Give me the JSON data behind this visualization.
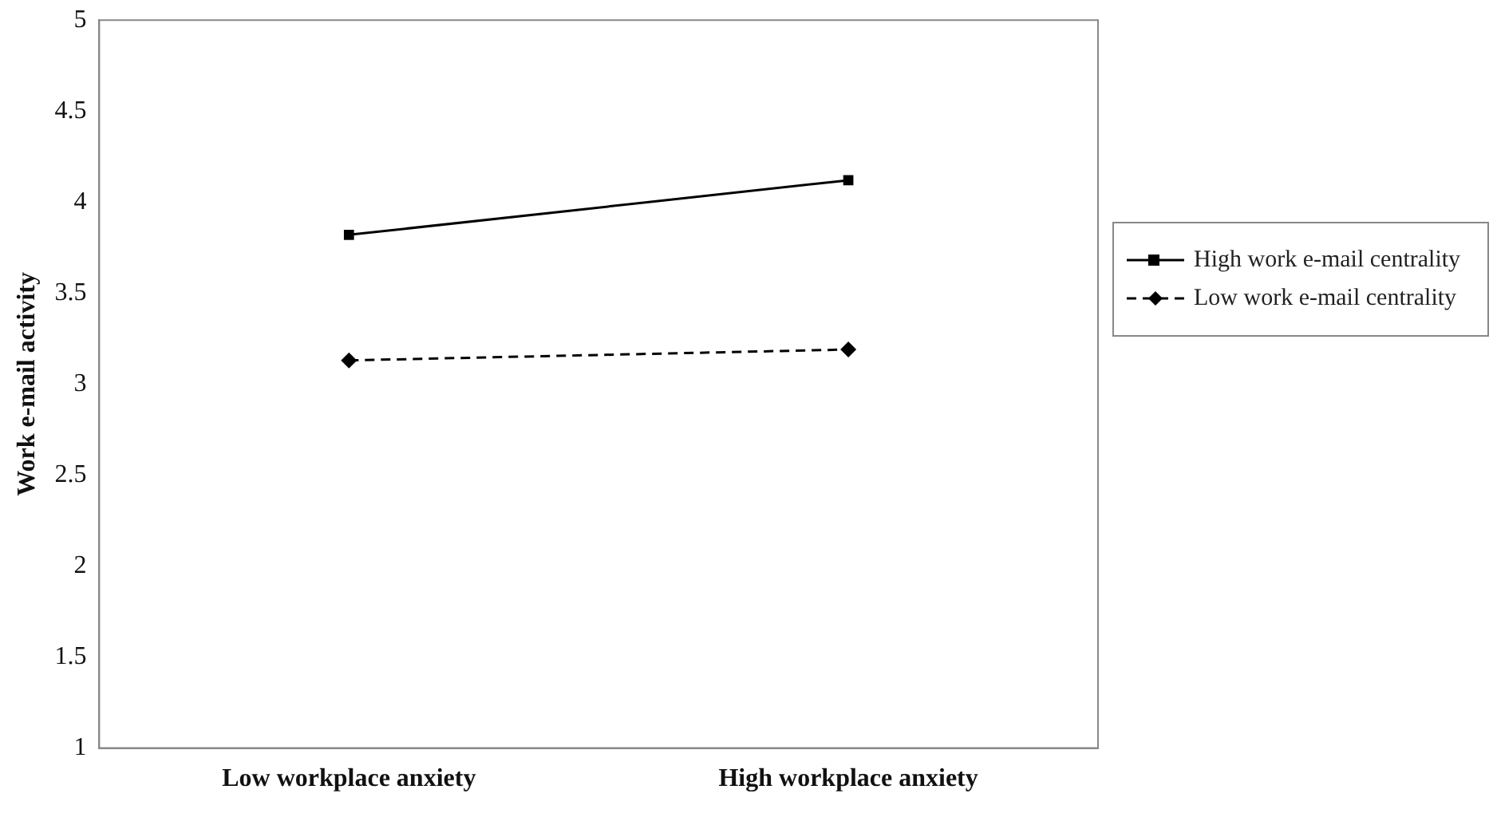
{
  "chart_data": {
    "type": "line",
    "ylabel": "Work e-mail activity",
    "categories": [
      "Low workplace anxiety",
      "High workplace anxiety"
    ],
    "ylim": [
      1,
      5
    ],
    "yticks": [
      1,
      1.5,
      2,
      2.5,
      3,
      3.5,
      4,
      4.5,
      5
    ],
    "grid": false,
    "legend": "right",
    "series": [
      {
        "name": "High work e-mail centrality",
        "color": "#000000",
        "values": [
          3.82,
          4.12
        ],
        "marker": "square",
        "line_style": "solid"
      },
      {
        "name": "Low work e-mail centrality",
        "color": "#000000",
        "values": [
          3.13,
          3.19
        ],
        "marker": "diamond",
        "line_style": "dashed"
      }
    ]
  }
}
